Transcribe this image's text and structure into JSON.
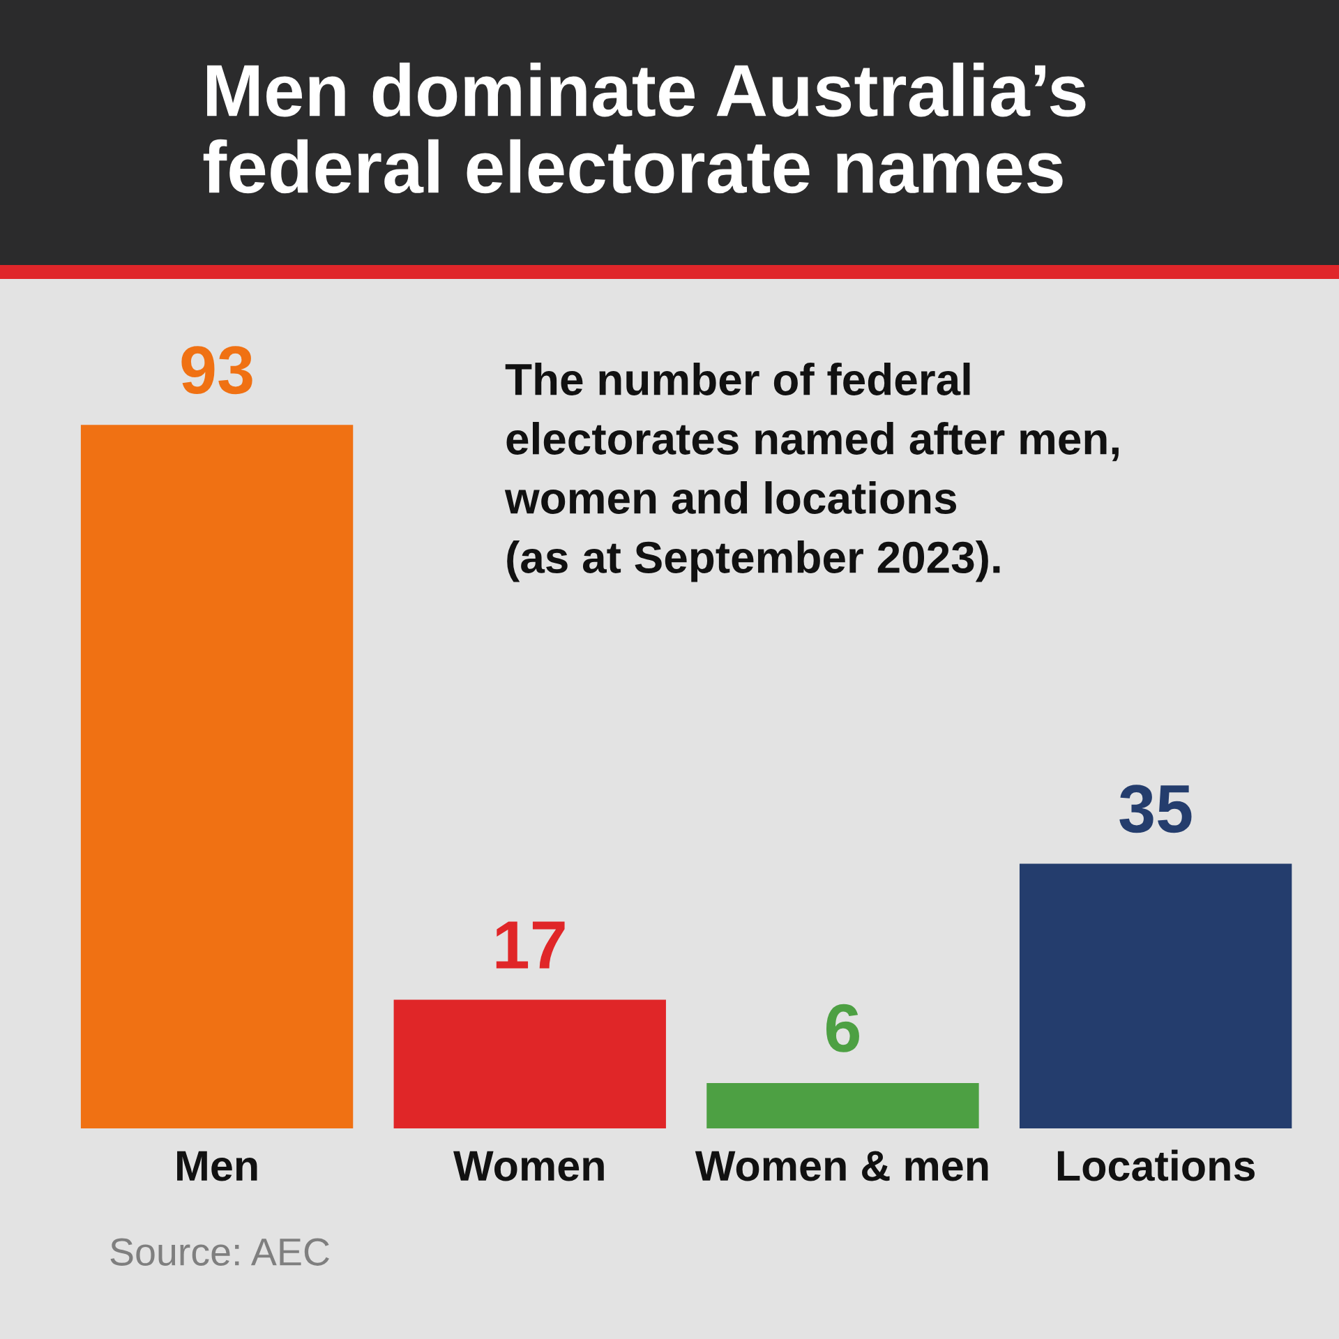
{
  "chart_data": {
    "type": "bar",
    "title": "Men dominate Australia’s\nfederal electorate names",
    "subtitle": "The number of federal\nelectorates named after men,\nwomen and locations\n(as at September 2023).",
    "categories": [
      "Men",
      "Women",
      "Women & men",
      "Locations"
    ],
    "values": [
      93,
      17,
      6,
      35
    ],
    "colors": [
      "#f07113",
      "#e02628",
      "#4da043",
      "#243d6d"
    ],
    "data_labels": true,
    "annotations": [
      "Source: AEC"
    ]
  }
}
